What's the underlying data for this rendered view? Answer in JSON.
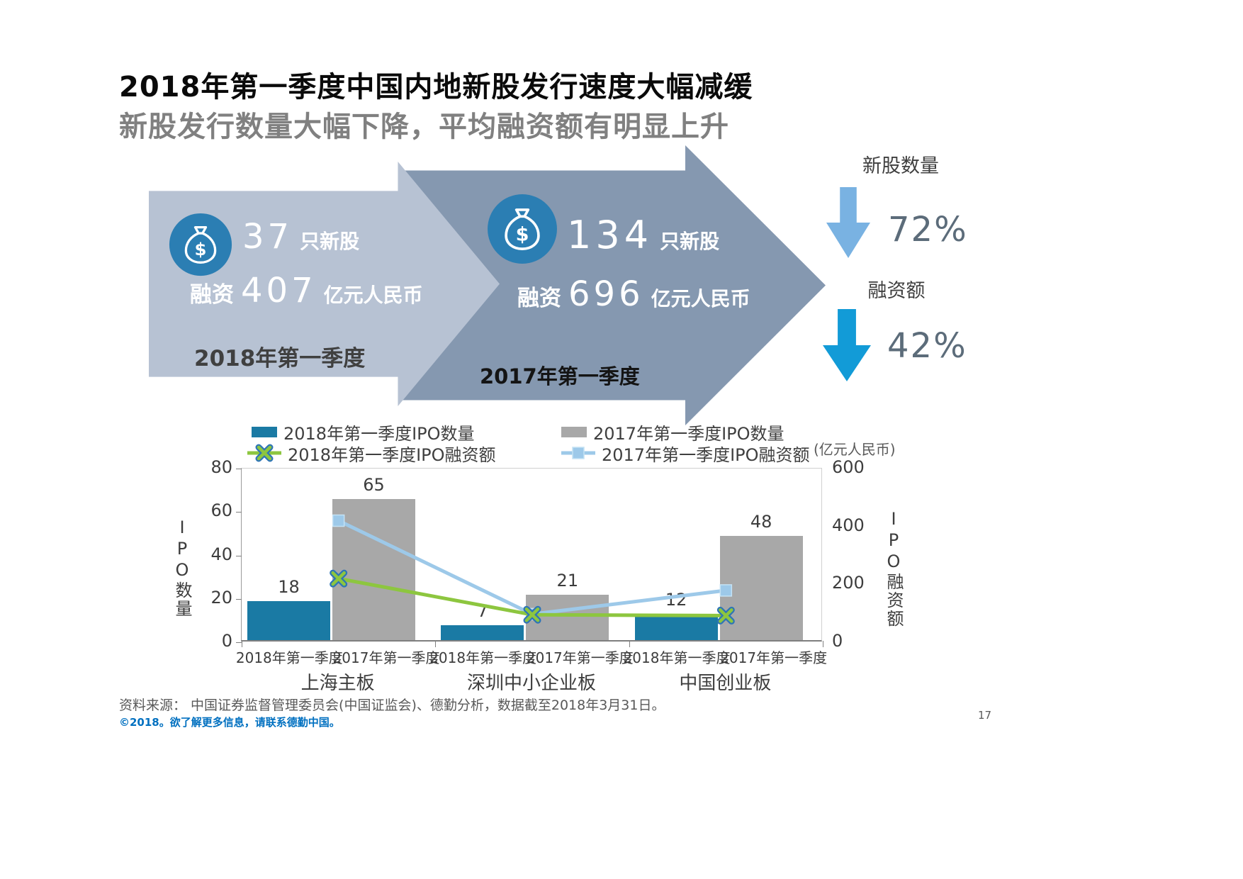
{
  "title": "2018年第一季度中国内地新股发行速度大幅减缓",
  "subtitle": "新股发行数量大幅下降，平均融资额有明显上升",
  "arrows": {
    "y2018": {
      "count": "37",
      "count_unit": "只新股",
      "raise_label": "融资",
      "raise_value": "407",
      "raise_unit": "亿元人民币",
      "period": "2018年第一季度"
    },
    "y2017": {
      "count": "134",
      "count_unit": "只新股",
      "raise_label": "融资",
      "raise_value": "696",
      "raise_unit": "亿元人民币",
      "period": "2017年第一季度"
    }
  },
  "kpis": [
    {
      "label": "新股数量",
      "value": "72%",
      "arrow_color": "#79b2e2"
    },
    {
      "label": "融资额",
      "value": "42%",
      "arrow_color": "#129bd7"
    }
  ],
  "chart_data": {
    "type": "combo bar+line",
    "unit_note": "(亿元人民币)",
    "categories": [
      "上海主板",
      "深圳中小企业板",
      "中国创业板"
    ],
    "x_labels": [
      "2018年第一季度",
      "2017年第一季度",
      "2018年第一季度",
      "2017年第一季度",
      "2018年第一季度",
      "2017年第一季度"
    ],
    "left_axis": {
      "title": "IPO数量",
      "max": 80,
      "ticks": [
        0,
        20,
        40,
        60,
        80
      ]
    },
    "right_axis": {
      "title": "IPO融资额",
      "max": 600,
      "ticks": [
        0,
        200,
        400,
        600
      ]
    },
    "bar_series": [
      {
        "name": "2018年第一季度IPO数量",
        "axis": "left",
        "color": "#1a7aa4",
        "values": [
          18,
          7,
          12
        ]
      },
      {
        "name": "2017年第一季度IPO数量",
        "axis": "left",
        "color": "#a8a8a8",
        "values": [
          65,
          21,
          48
        ]
      }
    ],
    "line_series": [
      {
        "name": "2018年第一季度IPO融资额",
        "axis": "right",
        "color": "#8dc63f",
        "marker": "x",
        "marker_edge": "#2e75b6",
        "values": [
          220,
          95,
          92
        ]
      },
      {
        "name": "2017年第一季度IPO融资额",
        "axis": "right",
        "color": "#9dc9e9",
        "marker": "square",
        "marker_edge": "#c4e2f4",
        "values": [
          420,
          97,
          179
        ]
      }
    ],
    "legend_position": "top",
    "grid": "off"
  },
  "footer": {
    "source": "资料来源：  中国证券监督管理委员会(中国证监会)、德勤分析，数据截至2018年3月31日。",
    "copyright": "©2018。欲了解更多信息，请联系德勤中国。",
    "page": "17"
  }
}
